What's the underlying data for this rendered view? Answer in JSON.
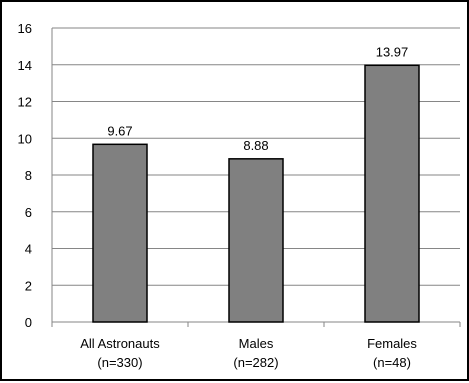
{
  "chart_data": {
    "type": "bar",
    "categories": [
      [
        "All Astronauts",
        "(n=330)"
      ],
      [
        "Males",
        "(n=282)"
      ],
      [
        "Females",
        "(n=48)"
      ]
    ],
    "values": [
      9.67,
      8.88,
      13.97
    ],
    "data_labels": [
      "9.67",
      "8.88",
      "13.97"
    ],
    "ylim": [
      0,
      16
    ],
    "yticks": [
      0,
      2,
      4,
      6,
      8,
      10,
      12,
      14,
      16
    ],
    "grid": true,
    "legend": "none",
    "title": "",
    "xlabel": "",
    "ylabel": "",
    "colors": {
      "bar_fill": "#808080",
      "bar_stroke": "#000000",
      "grid": "#868686",
      "axis": "#868686"
    }
  }
}
